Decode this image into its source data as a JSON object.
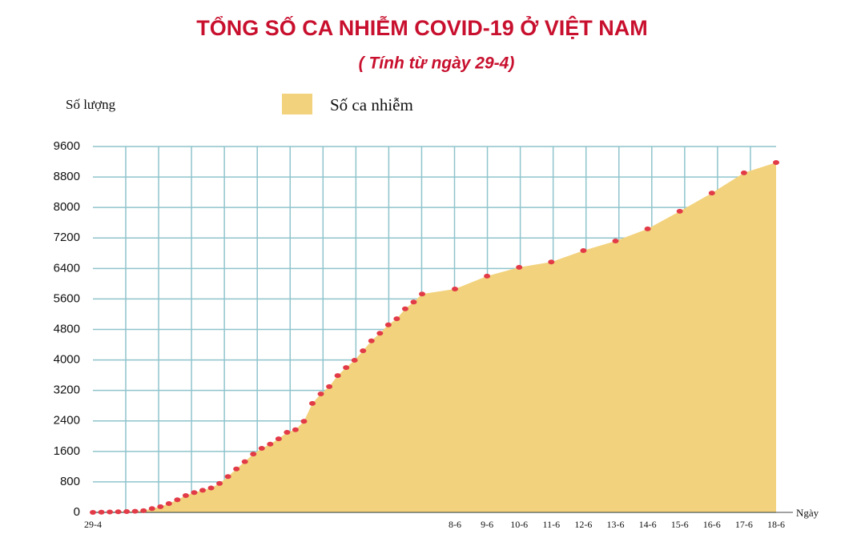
{
  "chart_data": {
    "type": "area",
    "title": "TỔNG SỐ CA NHIỄM COVID-19 Ở VIỆT NAM",
    "subtitle": "( Tính từ ngày 29-4)",
    "y_label": "Số lượng",
    "x_label": "Ngày",
    "categories": [
      "29-4",
      null,
      null,
      null,
      null,
      null,
      null,
      null,
      null,
      null,
      null,
      null,
      null,
      null,
      null,
      null,
      null,
      null,
      null,
      null,
      null,
      null,
      null,
      null,
      null,
      null,
      null,
      null,
      null,
      null,
      null,
      null,
      null,
      null,
      null,
      null,
      null,
      null,
      null,
      null,
      "8-6",
      "9-6",
      "10-6",
      "11-6",
      "12-6",
      "13-6",
      "14-6",
      "15-6",
      "16-6",
      "17-6",
      "18-6"
    ],
    "series": [
      {
        "name": "Số ca nhiễm",
        "color": "#f2d27c",
        "marker_color": "#e23b47",
        "values": [
          0,
          5,
          10,
          15,
          20,
          30,
          45,
          100,
          150,
          230,
          330,
          440,
          520,
          580,
          640,
          760,
          940,
          1140,
          1330,
          1530,
          1680,
          1790,
          1930,
          2100,
          2170,
          2390,
          2860,
          3110,
          3300,
          3590,
          3800,
          3990,
          4240,
          4500,
          4700,
          4920,
          5080,
          5340,
          5520,
          5730,
          5860,
          6200,
          6430,
          6570,
          6870,
          7120,
          7440,
          7900,
          8380,
          8910,
          9180
        ]
      }
    ],
    "ylim": [
      0,
      9600
    ],
    "yticks": [
      0,
      800,
      1600,
      2400,
      3200,
      4000,
      4800,
      5600,
      6400,
      7200,
      8000,
      8800,
      9600
    ],
    "grid": true,
    "grid_color": "#8fc4cc"
  }
}
